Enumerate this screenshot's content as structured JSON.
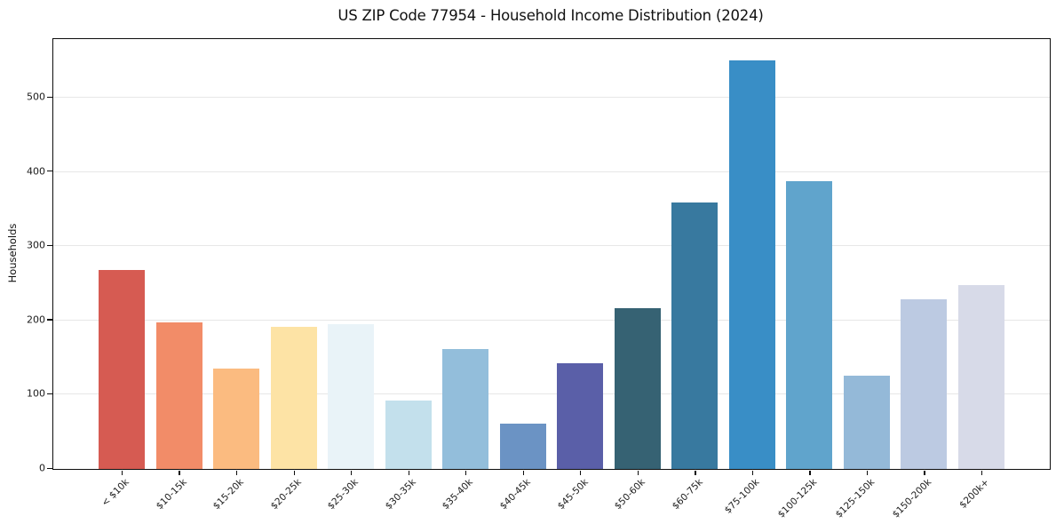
{
  "chart_data": {
    "type": "bar",
    "title": "US ZIP Code 77954 - Household Income Distribution (2024)",
    "xlabel": "",
    "ylabel": "Households",
    "categories": [
      "< $10k",
      "$10-15k",
      "$15-20k",
      "$20-25k",
      "$25-30k",
      "$30-35k",
      "$35-40k",
      "$40-45k",
      "$45-50k",
      "$50-60k",
      "$60-75k",
      "$75-100k",
      "$100-125k",
      "$125-150k",
      "$150-200k",
      "$200k+"
    ],
    "values": [
      268,
      197,
      135,
      191,
      195,
      92,
      162,
      61,
      142,
      217,
      359,
      550,
      388,
      126,
      228,
      248
    ],
    "bar_colors": [
      "#d65b52",
      "#f28c68",
      "#fbbb80",
      "#fde3a5",
      "#e9f3f8",
      "#c3e0ec",
      "#93bedb",
      "#6b93c4",
      "#5a5fa8",
      "#366273",
      "#38799f",
      "#398ec6",
      "#60a4cc",
      "#94b9d8",
      "#bccae2",
      "#d7dae8"
    ],
    "yticks": [
      0,
      100,
      200,
      300,
      400,
      500
    ],
    "ylim": [
      0,
      579
    ],
    "grid": "horizontal",
    "grid_color": "#e7e7e7",
    "spine_color": "#0d0d0d",
    "background_color": "#ffffff",
    "legend": "none"
  }
}
